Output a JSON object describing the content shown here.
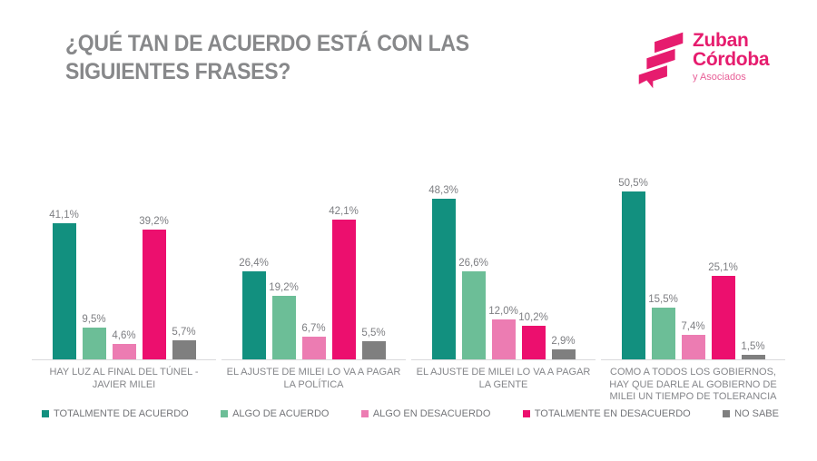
{
  "title": "¿QUÉ TAN DE ACUERDO ESTÁ CON LAS SIGUIENTES FRASES?",
  "logo": {
    "name": "Zuban Córdoba y Asociados",
    "line1": "Zuban",
    "line2": "Córdoba",
    "line3": "y Asociados",
    "brand_color": "#e61c6e"
  },
  "colors": {
    "title_text": "#87888a",
    "axis_label_text": "#85868a",
    "value_label_text": "#7d7e82",
    "baseline": "#d9d9db",
    "background": "#ffffff"
  },
  "chart_data": {
    "type": "bar",
    "title": "¿QUÉ TAN DE ACUERDO ESTÁ CON LAS SIGUIENTES FRASES?",
    "categories": [
      "HAY LUZ AL FINAL DEL TÚNEL - JAVIER MILEI",
      "EL AJUSTE DE MILEI LO VA A PAGAR LA POLÍTICA",
      "EL AJUSTE DE MILEI LO VA A PAGAR LA GENTE",
      "COMO A TODOS LOS GOBIERNOS, HAY QUE DARLE AL GOBIERNO DE MILEI UN TIEMPO DE TOLERANCIA"
    ],
    "series": [
      {
        "name": "TOTALMENTE DE ACUERDO",
        "color": "#12907f",
        "values": [
          41.1,
          26.4,
          48.3,
          50.5
        ],
        "labels": [
          "41,1%",
          "26,4%",
          "48,3%",
          "50,5%"
        ]
      },
      {
        "name": "ALGO DE ACUERDO",
        "color": "#6cbe97",
        "values": [
          9.5,
          19.2,
          26.6,
          15.5
        ],
        "labels": [
          "9,5%",
          "19,2%",
          "26,6%",
          "15,5%"
        ]
      },
      {
        "name": "ALGO EN DESACUERDO",
        "color": "#ec7cb2",
        "values": [
          4.6,
          6.7,
          12.0,
          7.4
        ],
        "labels": [
          "4,6%",
          "6,7%",
          "12,0%",
          "7,4%"
        ]
      },
      {
        "name": "TOTALMENTE EN DESACUERDO",
        "color": "#ec0f6e",
        "values": [
          39.2,
          42.1,
          10.2,
          25.1
        ],
        "labels": [
          "39,2%",
          "42,1%",
          "10,2%",
          "25,1%"
        ]
      },
      {
        "name": "NO SABE",
        "color": "#7f7f7f",
        "values": [
          5.7,
          5.5,
          2.9,
          1.5
        ],
        "labels": [
          "5,7%",
          "5,5%",
          "2,9%",
          "1,5%"
        ]
      }
    ],
    "ylim": [
      0,
      55
    ],
    "grid": false,
    "y_axis_visible": false,
    "legend_position": "bottom",
    "value_label_format": "comma-decimal percent"
  }
}
